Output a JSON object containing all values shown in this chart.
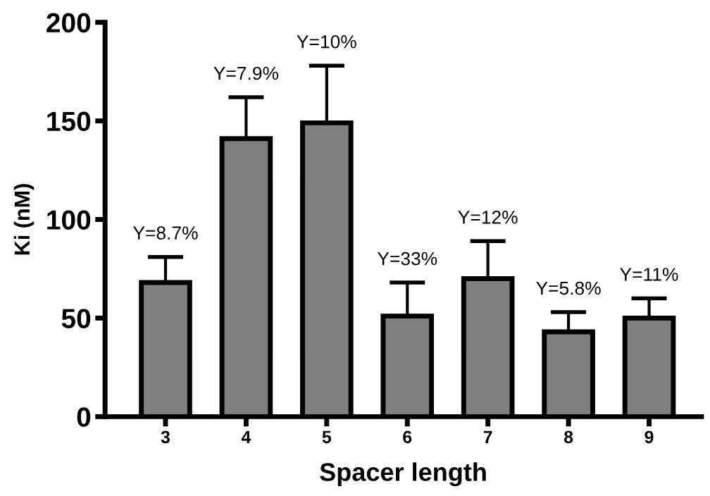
{
  "chart_data": {
    "type": "bar",
    "xlabel": "Spacer length",
    "ylabel": "Ki (nM)",
    "categories": [
      "3",
      "4",
      "5",
      "6",
      "7",
      "8",
      "9"
    ],
    "values": [
      68,
      141,
      149,
      51,
      70,
      43,
      50
    ],
    "errors": [
      [
        68,
        81
      ],
      [
        141,
        162
      ],
      [
        149,
        178
      ],
      [
        51,
        68
      ],
      [
        70,
        89
      ],
      [
        43,
        53
      ],
      [
        50,
        60
      ]
    ],
    "color": "#808080",
    "ylim": [
      0,
      200
    ],
    "yticks": [
      0,
      50,
      100,
      150,
      200
    ],
    "grid": false,
    "annotations": [
      "Y=8.7%",
      "Y=7.9%",
      "Y=10%",
      "Y=33%",
      "Y=12%",
      "Y=5.8%",
      "Y=11%"
    ]
  }
}
